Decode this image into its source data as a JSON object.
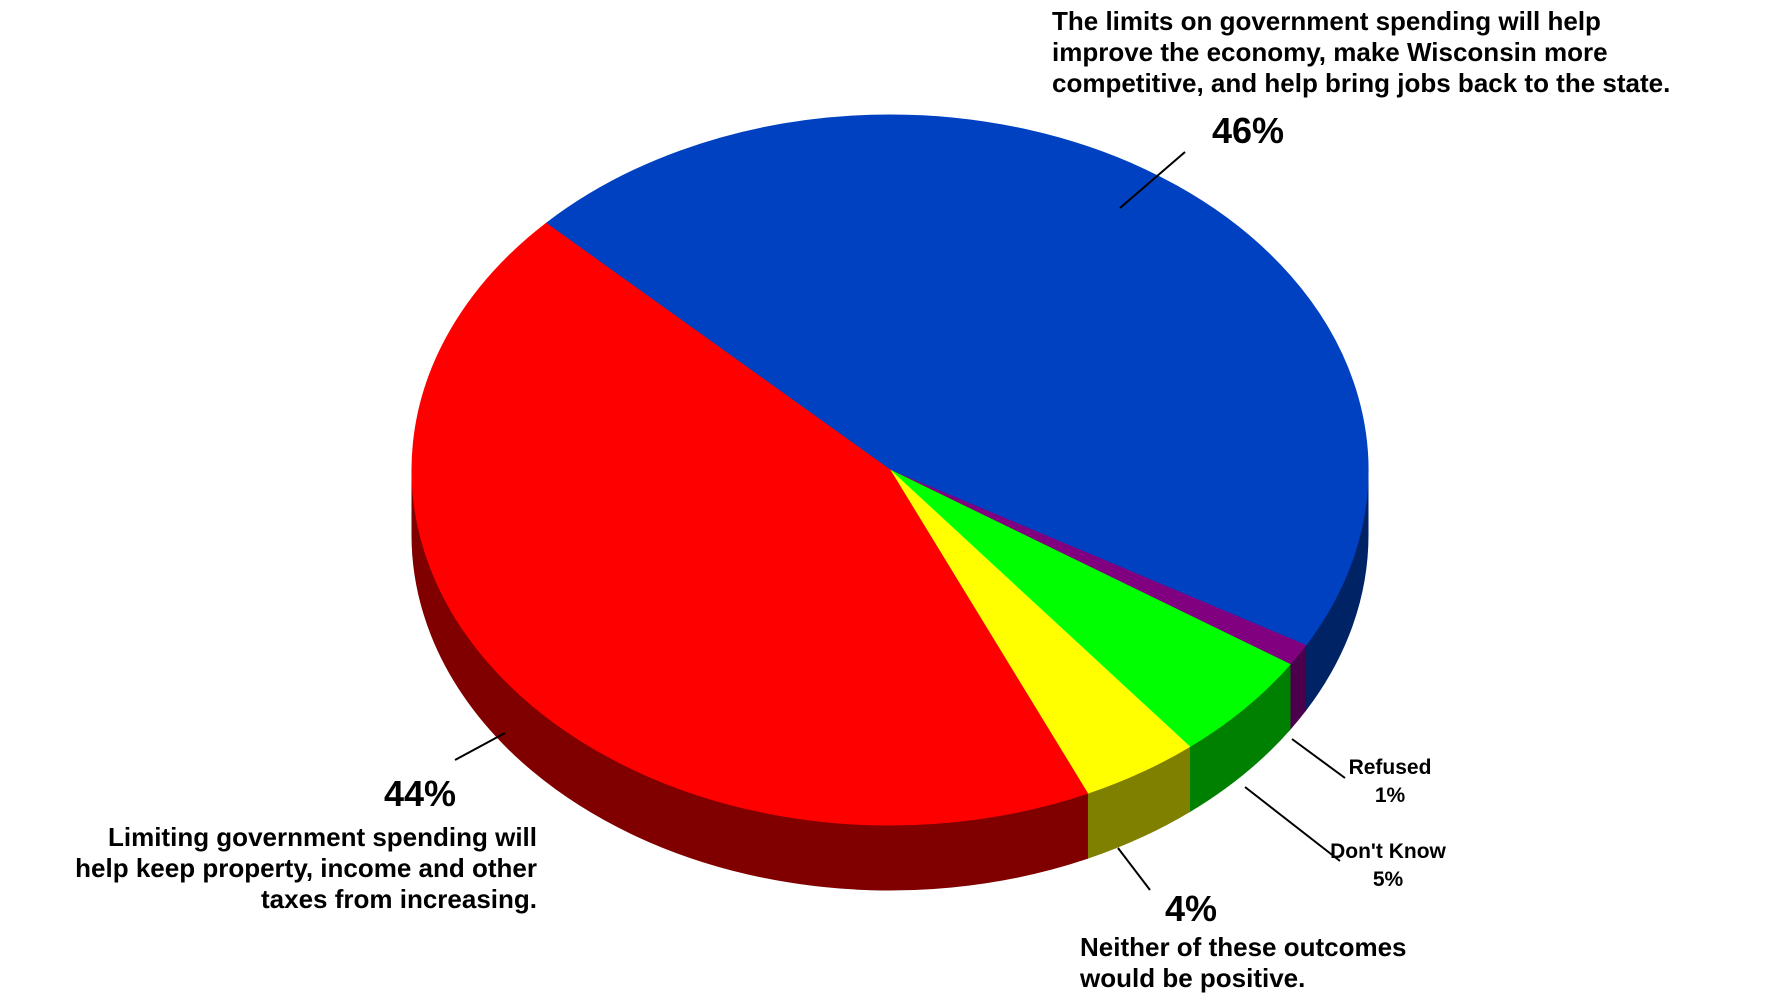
{
  "chart_data": {
    "type": "pie",
    "style": "3d",
    "slices": [
      {
        "label": "The limits on government spending will help improve the economy, make Wisconsin more competitive, and help bring jobs back to the state.",
        "value": 46,
        "value_label": "46%",
        "color": "#0041c2",
        "side_color": "#002366"
      },
      {
        "label": "Refused",
        "value": 1,
        "value_label": "1%",
        "color": "#800080",
        "side_color": "#4a004a"
      },
      {
        "label": "Don't Know",
        "value": 5,
        "value_label": "5%",
        "color": "#00ff00",
        "side_color": "#008000"
      },
      {
        "label": "Neither of these outcomes would be positive.",
        "value": 4,
        "value_label": "4%",
        "color": "#ffff00",
        "side_color": "#808000"
      },
      {
        "label": "Limiting government spending will help keep property, income and other taxes from increasing.",
        "value": 44,
        "value_label": "44%",
        "color": "#ff0000",
        "side_color": "#800000"
      }
    ],
    "labels": {
      "improve": {
        "lines": [
          "The limits on government spending will help",
          "improve the economy, make Wisconsin more",
          "competitive, and help bring jobs back to the state."
        ],
        "pct": "46%"
      },
      "limit_taxes": {
        "lines": [
          "Limiting government spending will",
          "help keep property, income and other",
          "taxes from increasing."
        ],
        "pct": "44%"
      },
      "neither": {
        "lines": [
          "Neither of these outcomes",
          "would be positive."
        ],
        "pct": "4%"
      },
      "dont_know": {
        "name": "Don't Know",
        "pct": "5%"
      },
      "refused": {
        "name": "Refused",
        "pct": "1%"
      }
    }
  }
}
